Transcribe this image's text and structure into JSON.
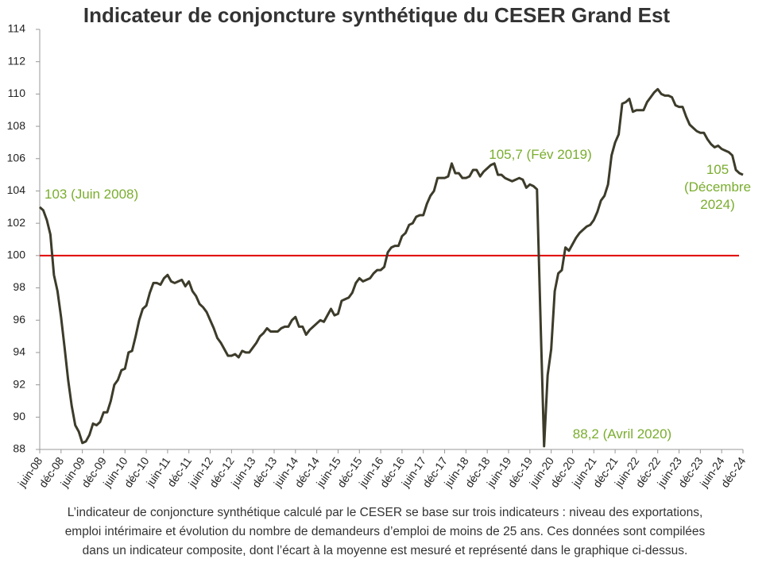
{
  "chart_data": {
    "type": "line",
    "title": "Indicateur de conjoncture synthétique du CESER Grand Est",
    "categories": [
      "juin-08",
      null,
      null,
      null,
      null,
      null,
      "déc-08",
      null,
      null,
      null,
      null,
      null,
      "juin-09",
      null,
      null,
      null,
      null,
      null,
      "déc-09",
      null,
      null,
      null,
      null,
      null,
      "juin-10",
      null,
      null,
      null,
      null,
      null,
      "déc-10",
      null,
      null,
      null,
      null,
      null,
      "juin-11",
      null,
      null,
      null,
      null,
      null,
      "déc-11",
      null,
      null,
      null,
      null,
      null,
      "juin-12",
      null,
      null,
      null,
      null,
      null,
      "déc-12",
      null,
      null,
      null,
      null,
      null,
      "juin-13",
      null,
      null,
      null,
      null,
      null,
      "déc-13",
      null,
      null,
      null,
      null,
      null,
      "juin-14",
      null,
      null,
      null,
      null,
      null,
      "déc-14",
      null,
      null,
      null,
      null,
      null,
      "juin-15",
      null,
      null,
      null,
      null,
      null,
      "déc-15",
      null,
      null,
      null,
      null,
      null,
      "juin-16",
      null,
      null,
      null,
      null,
      null,
      "déc-16",
      null,
      null,
      null,
      null,
      null,
      "juin-17",
      null,
      null,
      null,
      null,
      null,
      "déc-17",
      null,
      null,
      null,
      null,
      null,
      "juin-18",
      null,
      null,
      null,
      null,
      null,
      "déc-18",
      null,
      null,
      null,
      null,
      null,
      "juin-19",
      null,
      null,
      null,
      null,
      null,
      "déc-19",
      null,
      null,
      null,
      null,
      null,
      "juin-20",
      null,
      null,
      null,
      null,
      null,
      "déc-20",
      null,
      null,
      null,
      null,
      null,
      "juin-21",
      null,
      null,
      null,
      null,
      null,
      "déc-21",
      null,
      null,
      null,
      null,
      null,
      "juin-22",
      null,
      null,
      null,
      null,
      null,
      "déc-22",
      null,
      null,
      null,
      null,
      null,
      "juin-23",
      null,
      null,
      null,
      null,
      null,
      "déc-23",
      null,
      null,
      null,
      null,
      null,
      "juin-24",
      null,
      null,
      null,
      null,
      null,
      "déc-24"
    ],
    "series": [
      {
        "color": "#3d3b2a",
        "values": [
          103,
          102.8,
          102.2,
          101.3,
          98.8,
          97.8,
          96.2,
          94.3,
          92.3,
          90.7,
          89.5,
          89.1,
          88.4,
          88.5,
          88.9,
          89.6,
          89.5,
          89.7,
          90.3,
          90.3,
          91.0,
          92.0,
          92.3,
          92.9,
          93.0,
          94.0,
          94.1,
          95.0,
          96.0,
          96.7,
          96.9,
          97.7,
          98.3,
          98.3,
          98.2,
          98.6,
          98.8,
          98.4,
          98.3,
          98.4,
          98.5,
          98.1,
          98.4,
          97.8,
          97.5,
          97.0,
          96.8,
          96.5,
          96.0,
          95.5,
          94.9,
          94.6,
          94.2,
          93.8,
          93.8,
          93.9,
          93.7,
          94.1,
          94.0,
          94.0,
          94.3,
          94.6,
          95.0,
          95.2,
          95.5,
          95.3,
          95.3,
          95.3,
          95.5,
          95.6,
          95.6,
          96.0,
          96.2,
          95.6,
          95.6,
          95.1,
          95.4,
          95.6,
          95.8,
          96.0,
          95.9,
          96.3,
          96.7,
          96.3,
          96.4,
          97.2,
          97.3,
          97.4,
          97.7,
          98.3,
          98.6,
          98.4,
          98.5,
          98.6,
          98.9,
          99.1,
          99.1,
          99.3,
          100.2,
          100.5,
          100.6,
          100.6,
          101.2,
          101.4,
          101.9,
          102.0,
          102.4,
          102.5,
          102.5,
          103.2,
          103.7,
          104.0,
          104.8,
          104.8,
          104.8,
          104.9,
          105.7,
          105.1,
          105.1,
          104.8,
          104.8,
          104.9,
          105.3,
          105.3,
          104.9,
          105.2,
          105.4,
          105.6,
          105.7,
          105.0,
          105.0,
          104.8,
          104.7,
          104.6,
          104.7,
          104.8,
          104.7,
          104.2,
          104.4,
          104.3,
          104.1,
          96.0,
          88.2,
          92.6,
          94.2,
          97.8,
          98.9,
          99.1,
          100.5,
          100.3,
          100.7,
          101.1,
          101.4,
          101.6,
          101.8,
          101.9,
          102.2,
          102.7,
          103.4,
          103.7,
          104.4,
          106.2,
          107.0,
          107.5,
          109.4,
          109.5,
          109.7,
          108.9,
          109.0,
          109.0,
          109.0,
          109.5,
          109.8,
          110.1,
          110.3,
          110.0,
          109.9,
          109.9,
          109.8,
          109.3,
          109.2,
          109.2,
          108.6,
          108.1,
          107.9,
          107.7,
          107.6,
          107.6,
          107.2,
          106.9,
          106.7,
          106.8,
          106.6,
          106.5,
          106.4,
          106.2,
          105.3,
          105.1,
          105.0
        ]
      }
    ],
    "ylim": [
      88,
      114
    ],
    "yticks": [
      88,
      90,
      92,
      94,
      96,
      98,
      100,
      102,
      104,
      106,
      108,
      110,
      112,
      114
    ],
    "reference_line": {
      "value": 100,
      "color": "#e00000"
    },
    "annotations": [
      [
        "103  (Juin 2008)"
      ],
      [
        "105,7 (Fév 2019)"
      ],
      [
        "105",
        "(Décembre",
        "2024)"
      ],
      [
        "88,2 (Avril 2020)"
      ]
    ],
    "footnote": [
      "L’indicateur de conjoncture synthétique calculé par le CESER se base sur trois indicateurs : niveau des exportations,",
      "emploi intérimaire et évolution du nombre de demandeurs d’emploi de moins de 25 ans. Ces données sont compilées",
      "dans un indicateur composite, dont l’écart à la moyenne est mesuré et représenté dans le graphique ci-dessus."
    ]
  }
}
